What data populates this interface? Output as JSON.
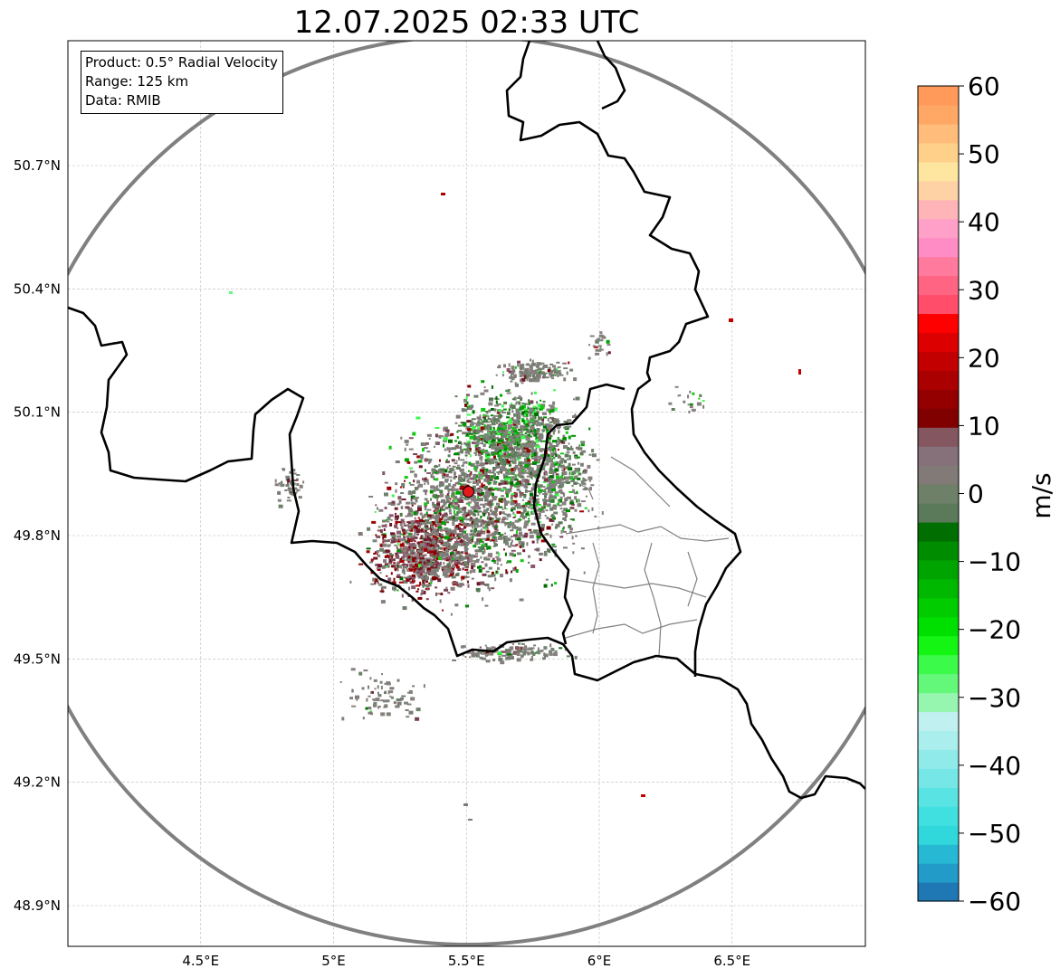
{
  "title": "12.07.2025 02:33 UTC",
  "info_box": {
    "product": "Product: 0.5° Radial Velocity",
    "range": "Range: 125 km",
    "source": "Data: RMIB"
  },
  "map": {
    "lon_range": [
      4.0,
      7.0
    ],
    "lat_range": [
      48.8,
      51.0
    ],
    "lon_ticks": [
      {
        "value": 4.5,
        "label": "4.5°E"
      },
      {
        "value": 5.0,
        "label": "5°E"
      },
      {
        "value": 5.5,
        "label": "5.5°E"
      },
      {
        "value": 6.0,
        "label": "6°E"
      },
      {
        "value": 6.5,
        "label": "6.5°E"
      }
    ],
    "lat_ticks": [
      {
        "value": 50.7,
        "label": "50.7°N"
      },
      {
        "value": 50.4,
        "label": "50.4°N"
      },
      {
        "value": 50.1,
        "label": "50.1°N"
      },
      {
        "value": 49.8,
        "label": "49.8°N"
      },
      {
        "value": 49.5,
        "label": "49.5°N"
      },
      {
        "value": 49.2,
        "label": "49.2°N"
      },
      {
        "value": 48.9,
        "label": "48.9°N"
      }
    ],
    "gridlines": true,
    "radar_site": {
      "lon": 5.505,
      "lat": 49.914,
      "color": "#e41a1c"
    },
    "range_ring_color": "#808080"
  },
  "colorbar": {
    "unit": "m/s",
    "min": -60,
    "max": 60,
    "ticks": [
      {
        "value": 60,
        "label": "60"
      },
      {
        "value": 50,
        "label": "50"
      },
      {
        "value": 40,
        "label": "40"
      },
      {
        "value": 30,
        "label": "30"
      },
      {
        "value": 20,
        "label": "20"
      },
      {
        "value": 10,
        "label": "10"
      },
      {
        "value": 0,
        "label": "0"
      },
      {
        "value": -10,
        "label": "−10"
      },
      {
        "value": -20,
        "label": "−20"
      },
      {
        "value": -30,
        "label": "−30"
      },
      {
        "value": -40,
        "label": "−40"
      },
      {
        "value": -50,
        "label": "−50"
      },
      {
        "value": -60,
        "label": "−60"
      }
    ],
    "colors": [
      "#1f78b4",
      "#239bc8",
      "#27b8d4",
      "#30d8dc",
      "#40e0e0",
      "#5ae3e3",
      "#76e6e6",
      "#90eaea",
      "#aaeeee",
      "#c0f0f0",
      "#96f5ae",
      "#64f87a",
      "#3cfa4a",
      "#14f514",
      "#00e000",
      "#00cc00",
      "#00b800",
      "#00a400",
      "#008c00",
      "#006e00",
      "#5a7a5a",
      "#6e8068",
      "#827a76",
      "#86707a",
      "#845660",
      "#800000",
      "#940000",
      "#aa0000",
      "#c20000",
      "#dd0000",
      "#ff0000",
      "#ff4d6a",
      "#ff6482",
      "#ff7a9c",
      "#ff8cc4",
      "#ffa0c8",
      "#ffb4b8",
      "#ffd2a6",
      "#ffe6a0",
      "#ffd08a",
      "#ffbc7a",
      "#ffa866",
      "#ff9a5a"
    ]
  }
}
